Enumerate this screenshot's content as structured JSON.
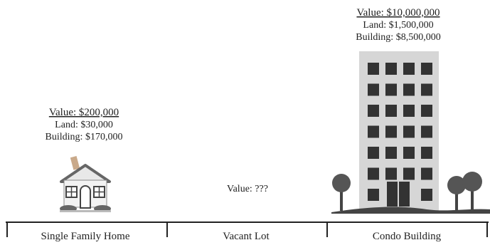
{
  "items": [
    {
      "label": "Single Family Home",
      "value": "Value: $200,000",
      "land": "Land: $30,000",
      "building": "Building: $170,000"
    },
    {
      "label": "Vacant Lot",
      "value": "Value: ???"
    },
    {
      "label": "Condo Building",
      "value": "Value: $10,000,000",
      "land": "Land: $1,500,000",
      "building": "Building: $8,500,000"
    }
  ]
}
